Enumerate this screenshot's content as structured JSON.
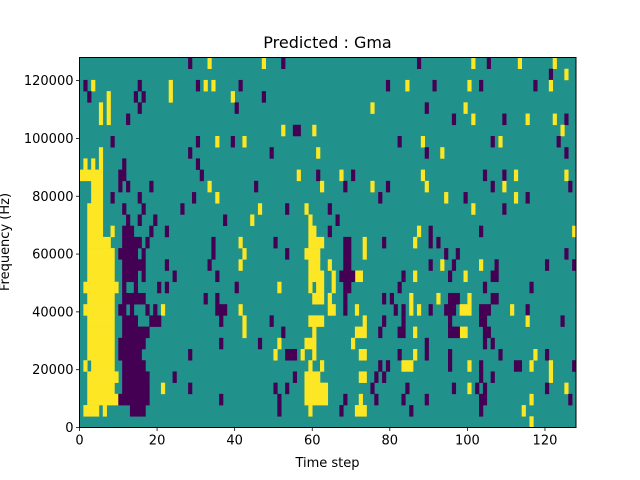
{
  "chart_data": {
    "type": "heatmap",
    "title": "Predicted : Gma",
    "xlabel": "Time step",
    "ylabel": "Frequency (Hz)",
    "xlim": [
      0,
      128
    ],
    "ylim": [
      0,
      128000
    ],
    "x_ticks": [
      0,
      20,
      40,
      60,
      80,
      100,
      120
    ],
    "x_tick_labels": [
      "0",
      "20",
      "40",
      "60",
      "80",
      "100",
      "120"
    ],
    "y_ticks": [
      0,
      20000,
      40000,
      60000,
      80000,
      100000,
      120000
    ],
    "y_tick_labels": [
      "0",
      "20000",
      "40000",
      "60000",
      "80000",
      "100000",
      "120000"
    ],
    "n_columns": 128,
    "n_rows": 33,
    "row_order": "top-to-bottom",
    "colors": {
      "background": "#21918c",
      "yellow": "#fde725",
      "purple": "#440154"
    },
    "rows": [
      {
        "yellow": [
          33,
          47,
          101,
          113,
          122
        ],
        "purple": [
          28,
          52,
          87,
          105
        ]
      },
      {
        "yellow": [
          125
        ],
        "purple": [
          121
        ]
      },
      {
        "yellow": [
          3,
          23,
          32,
          34,
          84,
          100,
          121
        ],
        "purple": [
          1,
          15,
          30,
          41,
          79,
          91,
          103,
          117
        ]
      },
      {
        "yellow": [
          7,
          23,
          39
        ],
        "purple": [
          2,
          14,
          16,
          47
        ]
      },
      {
        "yellow": [
          5,
          7,
          75,
          99
        ],
        "purple": [
          15,
          40,
          89
        ]
      },
      {
        "yellow": [
          5,
          7,
          101,
          115,
          122
        ],
        "purple": [
          12,
          96,
          109,
          125
        ]
      },
      {
        "yellow": [
          52,
          60,
          124
        ],
        "purple": [
          [
            55,
            56
          ]
        ]
      },
      {
        "yellow": [
          35,
          42,
          88,
          108
        ],
        "purple": [
          8,
          30,
          39,
          82,
          106,
          123
        ]
      },
      {
        "yellow": [
          5,
          61,
          93
        ],
        "purple": [
          28,
          49,
          89,
          125
        ]
      },
      {
        "yellow": [
          1,
          3,
          5
        ],
        "purple": [
          11,
          30
        ]
      },
      {
        "yellow": [
          [
            0,
            5
          ],
          56,
          67,
          88,
          112,
          125
        ],
        "purple": [
          [
            10,
            11
          ],
          31,
          61,
          70,
          104,
          109
        ]
      },
      {
        "yellow": [
          [
            3,
            5
          ],
          33,
          62,
          75,
          89,
          109
        ],
        "purple": [
          10,
          12,
          18,
          45,
          68,
          79,
          106,
          126
        ]
      },
      {
        "yellow": [
          [
            3,
            5
          ],
          35,
          94,
          112
        ],
        "purple": [
          8,
          15,
          29,
          77,
          99,
          115
        ]
      },
      {
        "yellow": [
          [
            2,
            5
          ],
          46,
          58,
          101
        ],
        "purple": [
          11,
          16,
          26,
          53,
          64,
          109
        ]
      },
      {
        "yellow": [
          [
            2,
            5
          ],
          44,
          59
        ],
        "purple": [
          12,
          15,
          19,
          37,
          66
        ]
      },
      {
        "yellow": [
          [
            2,
            5
          ],
          8,
          [
            59,
            60
          ],
          87,
          127
        ],
        "purple": [
          [
            11,
            13
          ],
          18,
          22,
          64,
          90,
          103
        ]
      },
      {
        "yellow": [
          [
            2,
            7
          ],
          41,
          [
            59,
            62
          ],
          73,
          86
        ],
        "purple": [
          [
            11,
            15
          ],
          17,
          34,
          50,
          [
            68,
            69
          ],
          78,
          90,
          92
        ]
      },
      {
        "yellow": [
          [
            2,
            8
          ],
          42,
          [
            58,
            61
          ],
          73
        ],
        "purple": [
          [
            10,
            14
          ],
          16,
          34,
          53,
          [
            68,
            69
          ],
          94,
          97,
          125
        ]
      },
      {
        "yellow": [
          [
            2,
            8
          ],
          41,
          [
            59,
            61
          ],
          64,
          93,
          103
        ],
        "purple": [
          [
            11,
            16
          ],
          22,
          33,
          [
            68,
            69
          ],
          90,
          96,
          107,
          120,
          127
        ]
      },
      {
        "yellow": [
          [
            2,
            8
          ],
          [
            59,
            62
          ],
          65,
          [
            71,
            72
          ],
          86,
          99
        ],
        "purple": [
          [
            11,
            14
          ],
          16,
          24,
          35,
          [
            67,
            70
          ],
          83,
          95,
          [
            106,
            107
          ]
        ]
      },
      {
        "yellow": [
          [
            1,
            9
          ],
          51,
          59,
          [
            61,
            62
          ],
          65
        ],
        "purple": [
          11,
          14,
          20,
          22,
          40,
          [
            68,
            69
          ],
          82,
          104,
          116
        ]
      },
      {
        "yellow": [
          [
            2,
            8
          ],
          [
            60,
            62
          ],
          64,
          85,
          92,
          100
        ],
        "purple": [
          [
            11,
            16
          ],
          32,
          35,
          68,
          78,
          80,
          [
            95,
            97
          ],
          [
            106,
            107
          ]
        ]
      },
      {
        "yellow": [
          [
            1,
            8
          ],
          21,
          41,
          [
            64,
            65
          ],
          71,
          85,
          87,
          [
            98,
            100
          ],
          111
        ],
        "purple": [
          [
            10,
            11
          ],
          13,
          17,
          19,
          [
            35,
            37
          ],
          68,
          81,
          83,
          90,
          [
            94,
            96
          ],
          [
            103,
            105
          ],
          115
        ]
      },
      {
        "yellow": [
          [
            2,
            8
          ],
          42,
          [
            59,
            62
          ],
          73,
          115
        ],
        "purple": [
          [
            11,
            14
          ],
          [
            18,
            20
          ],
          36,
          49,
          78,
          83,
          95,
          [
            103,
            104
          ],
          124
        ]
      },
      {
        "yellow": [
          [
            2,
            8
          ],
          42,
          60,
          [
            71,
            73
          ],
          86,
          [
            98,
            99
          ]
        ],
        "purple": [
          [
            11,
            17
          ],
          52,
          77,
          [
            82,
            83
          ],
          [
            95,
            97
          ],
          [
            104,
            105
          ]
        ]
      },
      {
        "yellow": [
          [
            2,
            8
          ],
          51,
          [
            58,
            60
          ],
          70
        ],
        "purple": [
          [
            10,
            16
          ],
          36,
          46,
          89,
          104,
          106
        ]
      },
      {
        "yellow": [
          [
            2,
            8
          ],
          50,
          57,
          60,
          [
            72,
            73
          ],
          86,
          117
        ],
        "purple": [
          [
            10,
            15
          ],
          28,
          [
            53,
            55
          ],
          82,
          89,
          95,
          108,
          120
        ]
      },
      {
        "yellow": [
          1,
          [
            3,
            8
          ],
          59,
          62,
          [
            83,
            85
          ],
          100,
          116,
          121
        ],
        "purple": [
          [
            11,
            16
          ],
          77,
          79,
          95,
          103,
          [
            112,
            113
          ],
          127
        ]
      },
      {
        "yellow": [
          [
            2,
            9
          ],
          [
            58,
            61
          ],
          [
            72,
            73
          ],
          121
        ],
        "purple": [
          [
            11,
            17
          ],
          24,
          55,
          76,
          78,
          103,
          106
        ]
      },
      {
        "yellow": [
          [
            2,
            8
          ],
          21,
          [
            58,
            63
          ],
          100,
          125
        ],
        "purple": [
          [
            11,
            17
          ],
          28,
          50,
          53,
          75,
          84,
          96,
          102,
          104,
          120
        ]
      },
      {
        "yellow": [
          [
            2,
            9
          ],
          [
            58,
            63
          ],
          72,
          116
        ],
        "purple": [
          [
            10,
            17
          ],
          36,
          51,
          68,
          76,
          83,
          89,
          [
            103,
            104
          ],
          126
        ]
      },
      {
        "yellow": [
          [
            1,
            4
          ],
          6,
          59,
          [
            71,
            73
          ],
          114
        ],
        "purple": [
          [
            13,
            16
          ],
          51,
          67,
          85,
          103
        ]
      },
      {
        "yellow": [
          116
        ],
        "purple": []
      }
    ]
  }
}
